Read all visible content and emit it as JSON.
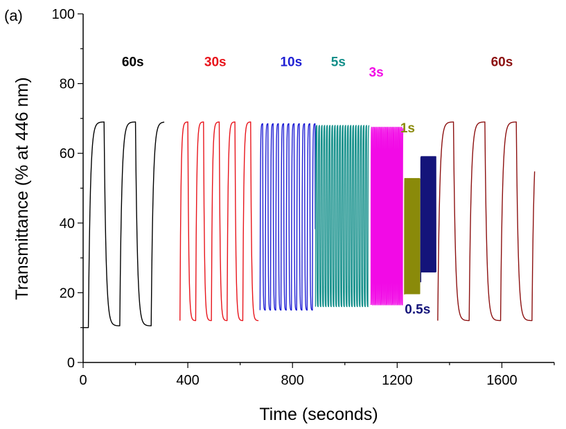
{
  "chart_data": {
    "type": "line",
    "panel_label": "(a)",
    "xlabel": "Time (seconds)",
    "ylabel": "Transmittance (% at 446 nm)",
    "xlim": [
      0,
      1800
    ],
    "ylim": [
      0,
      100
    ],
    "xticks": [
      0,
      400,
      800,
      1200,
      1600
    ],
    "yticks": [
      0,
      20,
      40,
      60,
      80,
      100
    ],
    "grid": false,
    "legend": "none",
    "series": [
      {
        "label": "60s",
        "color": "#000000",
        "t_start": 0,
        "t_end": 310,
        "half_period": 60,
        "bleached": 69,
        "colored": 10.5,
        "first_bleached": 10,
        "label_pos": [
          190,
          85
        ]
      },
      {
        "label": "30s",
        "color": "#e8141b",
        "t_start": 370,
        "t_end": 670,
        "half_period": 30,
        "bleached": 69,
        "colored": 12,
        "label_pos": [
          505,
          85
        ]
      },
      {
        "label": "10s",
        "color": "#1f1fd4",
        "t_start": 676,
        "t_end": 887,
        "half_period": 10,
        "bleached": 68.5,
        "colored": 15,
        "label_pos": [
          795,
          85
        ]
      },
      {
        "label": "5s",
        "color": "#138f8a",
        "t_start": 888,
        "t_end": 1093,
        "half_period": 5,
        "bleached": 68,
        "colored": 16,
        "label_pos": [
          975,
          85
        ]
      },
      {
        "label": "3s",
        "color": "#f20ae6",
        "t_start": 1100,
        "t_end": 1222,
        "half_period": 3,
        "bleached": 67.5,
        "colored": 16.5,
        "label_pos": [
          1120,
          82
        ]
      },
      {
        "label": "1s",
        "color": "#8a8a0a",
        "t_start": 1228,
        "t_end": 1287,
        "half_period": 1,
        "bleached": 53,
        "colored": 19.5,
        "label_pos": [
          1240,
          66
        ]
      },
      {
        "label": "0.5s",
        "color": "#14147a",
        "t_start": 1290,
        "t_end": 1348,
        "half_period": 0.5,
        "bleached": 62,
        "colored": 23,
        "label_pos": [
          1278,
          14
        ]
      },
      {
        "label": "60s",
        "color": "#8c1010",
        "t_start": 1355,
        "t_end": 1725,
        "half_period": 60,
        "bleached": 69,
        "colored": 12,
        "label_pos": [
          1600,
          85
        ]
      }
    ]
  }
}
